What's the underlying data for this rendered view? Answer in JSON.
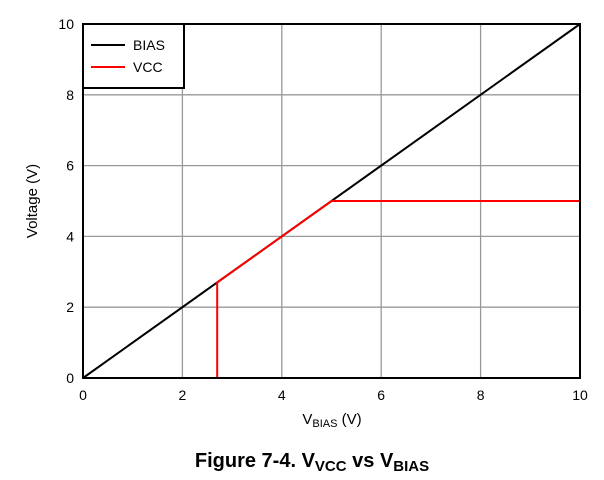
{
  "chart_data": {
    "type": "line",
    "title": {
      "prefix": "Figure 7-4. V",
      "sub1": "VCC",
      "mid": " vs V",
      "sub2": "BIAS"
    },
    "xlabel": {
      "main": "V",
      "sub": "BIAS",
      "unit": " (V)"
    },
    "ylabel": "Voltage (V)",
    "xlim": [
      0,
      10
    ],
    "ylim": [
      0,
      10
    ],
    "xticks": [
      0,
      2,
      4,
      6,
      8,
      10
    ],
    "yticks": [
      0,
      2,
      4,
      6,
      8,
      10
    ],
    "grid": true,
    "legend_position": "top-left",
    "series": [
      {
        "name": "BIAS",
        "color": "#000000",
        "x": [
          0,
          10
        ],
        "y": [
          0,
          10
        ]
      },
      {
        "name": "VCC",
        "color": "#ff0000",
        "x": [
          2.7,
          2.7,
          5,
          10
        ],
        "y": [
          0,
          2.7,
          5,
          5
        ]
      }
    ]
  }
}
